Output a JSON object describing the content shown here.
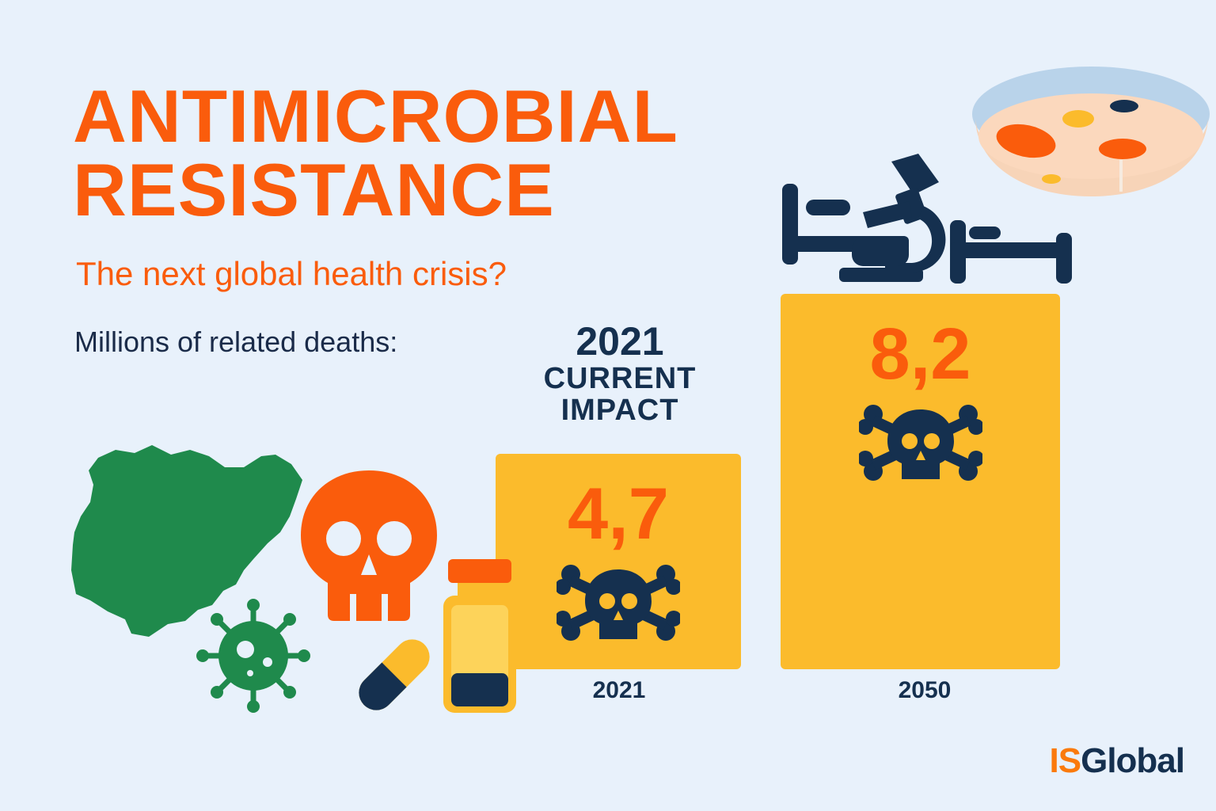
{
  "title": {
    "line1": "ANTIMICROBIAL",
    "line2": "RESISTANCE"
  },
  "subtitle": "The next global health crisis?",
  "measure_label": "Millions of related deaths:",
  "annotation": {
    "year": "2021",
    "label_line1": "CURRENT",
    "label_line2": "IMPACT"
  },
  "chart_data": {
    "type": "bar",
    "categories": [
      "2021",
      "2050"
    ],
    "values": [
      4.7,
      8.2
    ],
    "value_labels": [
      "4,7",
      "8,2"
    ],
    "ylabel": "Millions of related deaths:",
    "ylim": [
      0,
      8.2
    ],
    "bar_color": "#fbbb2c",
    "value_color": "#fa5c0c"
  },
  "colors": {
    "background": "#e8f1fb",
    "orange": "#fa5c0c",
    "navy": "#15304f",
    "yellow": "#fbbb2c",
    "green": "#1f8a4c"
  },
  "icons": [
    "nigeria-map-icon",
    "virus-icon",
    "skull-icon",
    "capsule-icon",
    "vial-icon",
    "crossbones-icon",
    "hospital-bed-icon",
    "microscope-icon",
    "petri-dish-icon"
  ],
  "logo": {
    "part1": "IS",
    "part2": "Global"
  }
}
